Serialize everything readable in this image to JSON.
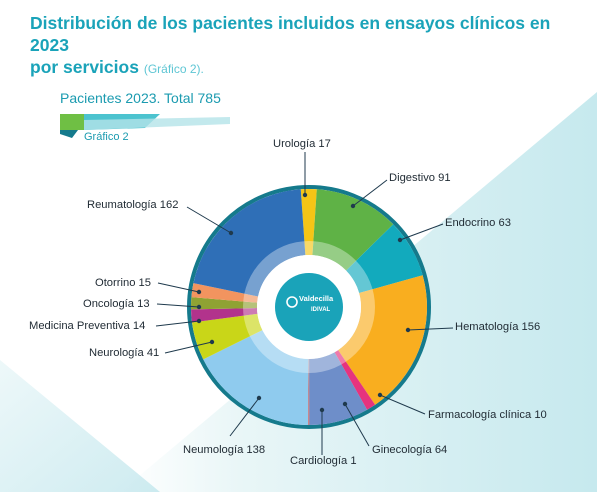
{
  "header": {
    "title_line1": "Distribución de los pacientes incluidos en ensayos clínicos en 2023",
    "title_line2": "por servicios",
    "title_ref": "(Gráfico 2)."
  },
  "legend_block": {
    "patients_label": "Pacientes 2023.",
    "total_label": "Total 785",
    "figure_ref": "Gráfico 2"
  },
  "colors": {
    "accent": "#1aa3b9",
    "banner_green": "#6fbf44",
    "banner_cyan": "#4cc3cf",
    "banner_dark": "#157a8c"
  },
  "center_logo": {
    "icon": "valdecilla-logo-icon",
    "line1": "Valdecilla",
    "line2": "IDIVAL"
  },
  "chart_data": {
    "type": "pie",
    "style": "donut",
    "total": 785,
    "slices": [
      {
        "name": "Urología",
        "value": 17,
        "label": "Urología 17",
        "color": "#f4c516"
      },
      {
        "name": "Digestivo",
        "value": 91,
        "label": "Digestivo 91",
        "color": "#5fb246"
      },
      {
        "name": "Endocrino",
        "value": 63,
        "label": "Endocrino 63",
        "color": "#12aabd"
      },
      {
        "name": "Hematología",
        "value": 156,
        "label": "Hematología 156",
        "color": "#f9ae1f"
      },
      {
        "name": "Farmacología clínica",
        "value": 10,
        "label": "Farmacología clínica 10",
        "color": "#e6337e"
      },
      {
        "name": "Ginecología",
        "value": 64,
        "label": "Ginecología 64",
        "color": "#6e8ec9"
      },
      {
        "name": "Cardiología",
        "value": 1,
        "label": "Cardiología 1",
        "color": "#e5473b"
      },
      {
        "name": "Neumología",
        "value": 138,
        "label": "Neumología 138",
        "color": "#8fcbee"
      },
      {
        "name": "Neurología",
        "value": 41,
        "label": "Neurología 41",
        "color": "#c9d618"
      },
      {
        "name": "Medicina Preventiva",
        "value": 14,
        "label": "Medicina Preventiva 14",
        "color": "#b2338c"
      },
      {
        "name": "Oncología",
        "value": 13,
        "label": "Oncología 13",
        "color": "#8fa233"
      },
      {
        "name": "Otorrino",
        "value": 15,
        "label": "Otorrino 15",
        "color": "#f2945f"
      },
      {
        "name": "Reumatología",
        "value": 162,
        "label": "Reumatología 162",
        "color": "#2f6fb7"
      }
    ]
  }
}
